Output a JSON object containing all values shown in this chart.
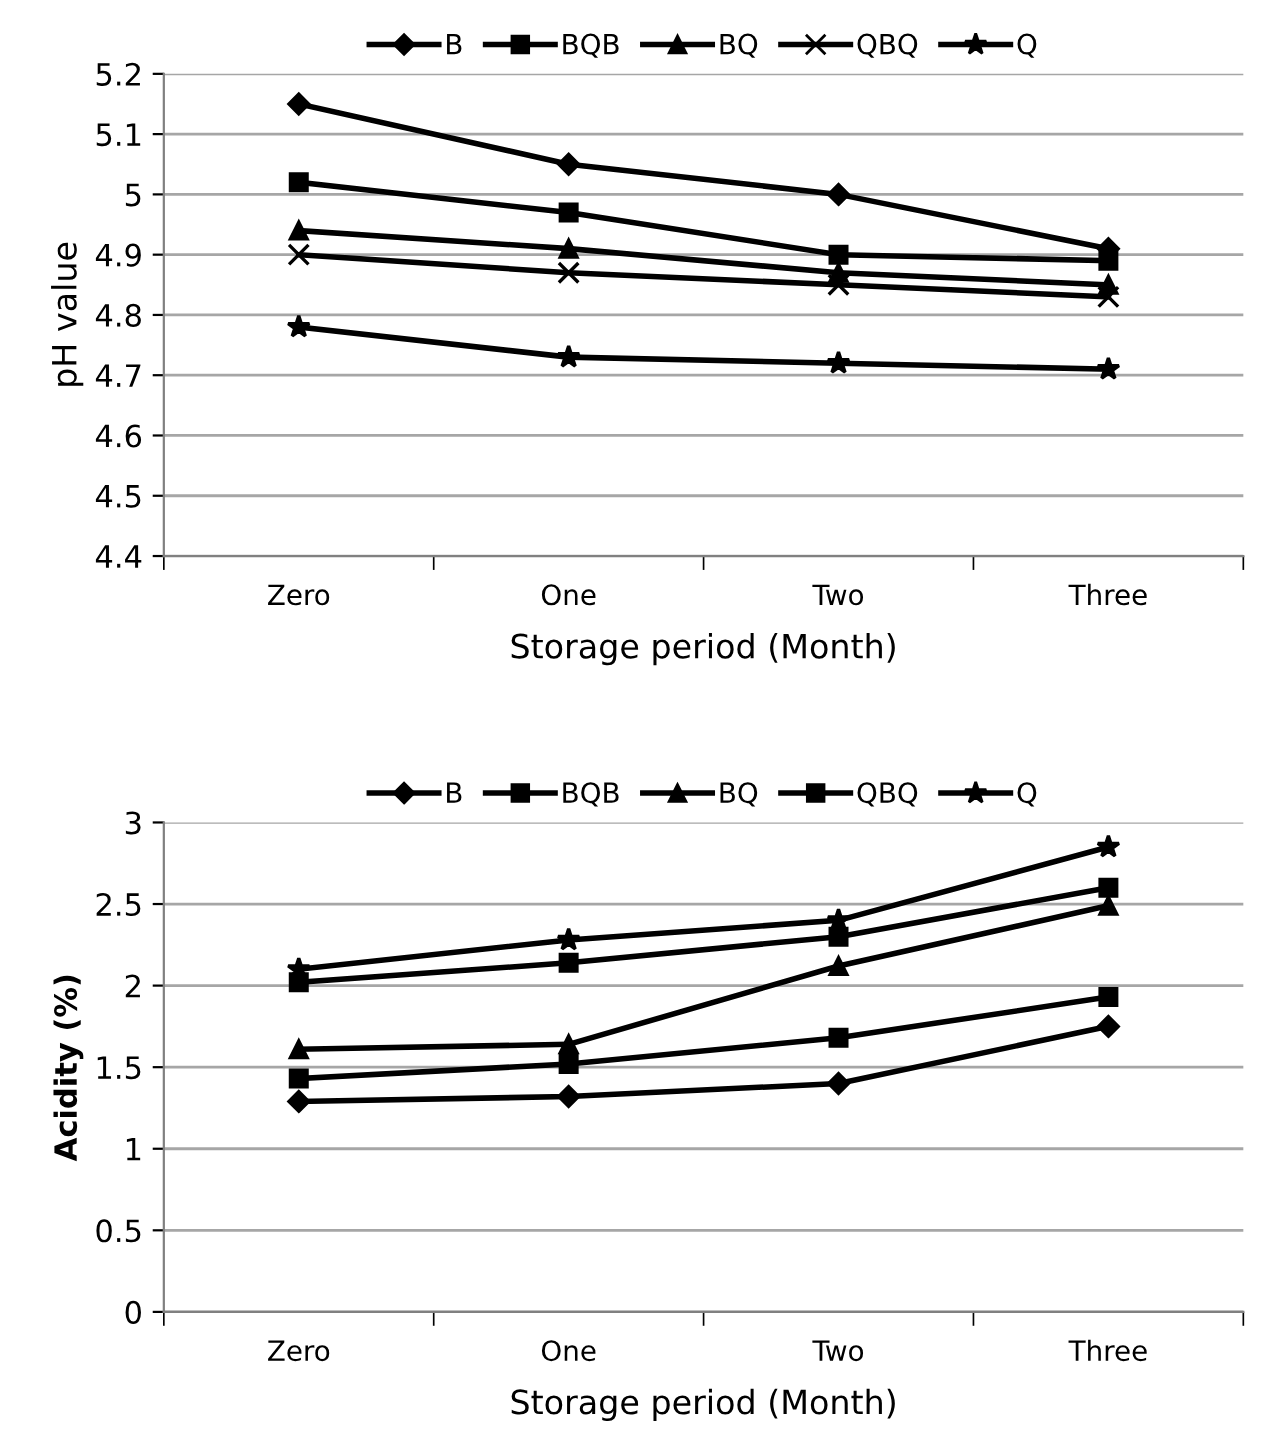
{
  "chart_data": [
    {
      "type": "line",
      "xlabel": "Storage period (Month)",
      "ylabel": "pH value",
      "categories": [
        "Zero",
        "One",
        "Two",
        "Three"
      ],
      "ylim": [
        4.4,
        5.2
      ],
      "yticks": [
        4.4,
        4.5,
        4.6,
        4.7,
        4.8,
        4.9,
        5,
        5.1,
        5.2
      ],
      "grid": "y",
      "legend": "top",
      "series": [
        {
          "name": "B",
          "color": "#000000",
          "marker": "diamond",
          "values": [
            5.15,
            5.05,
            5.0,
            4.91
          ]
        },
        {
          "name": "BQB",
          "color": "#000000",
          "marker": "square",
          "values": [
            5.02,
            4.97,
            4.9,
            4.89
          ]
        },
        {
          "name": "BQ",
          "color": "#000000",
          "marker": "triangle",
          "values": [
            4.94,
            4.91,
            4.87,
            4.85
          ]
        },
        {
          "name": "QBQ",
          "color": "#000000",
          "marker": "cross",
          "values": [
            4.9,
            4.87,
            4.85,
            4.83
          ]
        },
        {
          "name": "Q",
          "color": "#000000",
          "marker": "star",
          "values": [
            4.78,
            4.73,
            4.72,
            4.71
          ]
        }
      ]
    },
    {
      "type": "line",
      "xlabel": "Storage period (Month)",
      "ylabel": "Acidity (%)",
      "categories": [
        "Zero",
        "One",
        "Two",
        "Three"
      ],
      "ylim": [
        0,
        3
      ],
      "yticks": [
        0,
        0.5,
        1,
        1.5,
        2,
        2.5,
        3
      ],
      "grid": "y",
      "legend": "top",
      "series": [
        {
          "name": "B",
          "color": "#000000",
          "marker": "diamond",
          "values": [
            1.29,
            1.32,
            1.4,
            1.75
          ]
        },
        {
          "name": "BQB",
          "color": "#000000",
          "marker": "square",
          "values": [
            2.02,
            2.14,
            2.3,
            2.6
          ]
        },
        {
          "name": "BQ",
          "color": "#000000",
          "marker": "triangle",
          "values": [
            1.61,
            1.64,
            2.12,
            2.49
          ]
        },
        {
          "name": "QBQ",
          "color": "#000000",
          "marker": "square",
          "values": [
            1.43,
            1.52,
            1.68,
            1.93
          ]
        },
        {
          "name": "Q",
          "color": "#000000",
          "marker": "star",
          "values": [
            2.1,
            2.28,
            2.4,
            2.85
          ]
        }
      ]
    }
  ]
}
